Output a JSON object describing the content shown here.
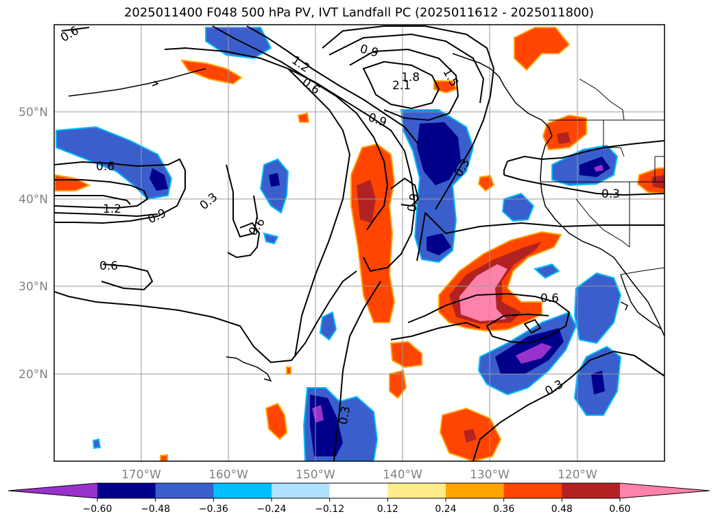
{
  "title": "2025011400 F048 500 hPa PV, IVT Landfall PC (2025011612 - 2025011800)",
  "axes": {
    "lat_labels": [
      "50°N",
      "40°N",
      "30°N",
      "20°N"
    ],
    "lon_labels": [
      "170°W",
      "160°W",
      "150°W",
      "140°W",
      "130°W",
      "120°W"
    ]
  },
  "colorbar": {
    "tick_labels": [
      "−0.60",
      "−0.48",
      "−0.36",
      "−0.24",
      "−0.12",
      "0.12",
      "0.24",
      "0.36",
      "0.48",
      "0.60"
    ],
    "colors": [
      "#9932CC",
      "#00008B",
      "#3A5FCD",
      "#00BFFF",
      "#B0E2FF",
      "#FFFFFF",
      "#FFEC8B",
      "#FFA500",
      "#FF4500",
      "#B22222",
      "#FF82AB"
    ]
  },
  "contour_labels": [
    {
      "text": "0.6"
    },
    {
      "text": "1.2"
    },
    {
      "text": "0.9"
    },
    {
      "text": "1.8"
    },
    {
      "text": "2.1"
    },
    {
      "text": "1.5"
    },
    {
      "text": "0.6"
    },
    {
      "text": "0.9"
    },
    {
      "text": "0.6"
    },
    {
      "text": "1.2"
    },
    {
      "text": "0.9"
    },
    {
      "text": "0.3"
    },
    {
      "text": "0.6"
    },
    {
      "text": "0.9"
    },
    {
      "text": "0.3"
    },
    {
      "text": "0.3"
    },
    {
      "text": "0.6"
    },
    {
      "text": "0.6"
    },
    {
      "text": "0.3"
    },
    {
      "text": "0.3"
    }
  ]
}
